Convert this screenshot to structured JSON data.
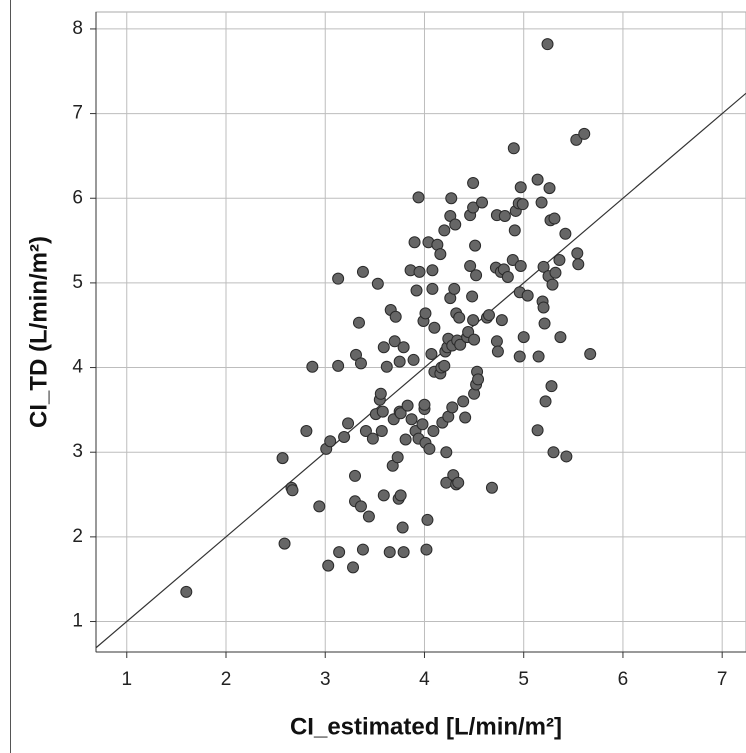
{
  "chart_data": {
    "type": "scatter",
    "x_label": "CI_estimated [L/min/m²]",
    "y_label": "CI_TD (L/min/m²)",
    "xlim": [
      0.69,
      7.24
    ],
    "ylim": [
      0.64,
      8.2
    ],
    "xticks": [
      1,
      2,
      3,
      4,
      5,
      6,
      7
    ],
    "yticks": [
      1,
      2,
      3,
      4,
      5,
      6,
      7,
      8
    ],
    "grid": true,
    "color": "#666666",
    "x": [
      1.6,
      2.57,
      2.59,
      2.66,
      2.67,
      2.81,
      2.87,
      2.94,
      3.01,
      3.05,
      3.03,
      3.13,
      3.13,
      3.14,
      3.19,
      3.23,
      3.28,
      3.3,
      3.3,
      3.31,
      3.34,
      3.36,
      3.36,
      3.38,
      3.38,
      3.41,
      3.44,
      3.48,
      3.51,
      3.53,
      3.55,
      3.56,
      3.57,
      3.58,
      3.59,
      3.59,
      3.62,
      3.65,
      3.66,
      3.68,
      3.69,
      3.7,
      3.71,
      3.73,
      3.74,
      3.75,
      3.75,
      3.76,
      3.76,
      3.78,
      3.79,
      3.79,
      3.81,
      3.83,
      3.86,
      3.87,
      3.89,
      3.9,
      3.91,
      3.92,
      3.94,
      3.94,
      3.95,
      3.98,
      3.99,
      4.0,
      4.0,
      4.01,
      4.01,
      4.02,
      4.03,
      4.04,
      4.05,
      4.07,
      4.08,
      4.08,
      4.09,
      4.1,
      4.1,
      4.13,
      4.16,
      4.16,
      4.17,
      4.18,
      4.2,
      4.2,
      4.21,
      4.22,
      4.22,
      4.23,
      4.24,
      4.24,
      4.26,
      4.26,
      4.27,
      4.28,
      4.28,
      4.29,
      4.3,
      4.31,
      4.32,
      4.32,
      4.33,
      4.34,
      4.35,
      4.36,
      4.39,
      4.41,
      4.43,
      4.44,
      4.46,
      4.46,
      4.48,
      4.49,
      4.49,
      4.49,
      4.5,
      4.5,
      4.51,
      4.52,
      4.52,
      4.53,
      4.54,
      4.58,
      4.63,
      4.65,
      4.68,
      4.72,
      4.73,
      4.73,
      4.74,
      4.77,
      4.78,
      4.8,
      4.81,
      4.84,
      4.89,
      4.9,
      4.91,
      4.92,
      4.95,
      4.96,
      4.96,
      4.97,
      4.97,
      4.99,
      5.0,
      5.04,
      5.14,
      5.14,
      5.15,
      5.18,
      5.19,
      5.2,
      5.2,
      5.21,
      5.22,
      5.24,
      5.25,
      5.26,
      5.27,
      5.28,
      5.29,
      5.3,
      5.31,
      5.32,
      5.36,
      5.37,
      5.42,
      5.43,
      5.53,
      5.54,
      5.55,
      5.61,
      5.67
    ],
    "values": [
      1.35,
      2.93,
      1.92,
      2.58,
      2.55,
      3.25,
      4.01,
      2.36,
      3.04,
      3.13,
      1.66,
      5.05,
      4.02,
      1.82,
      3.18,
      3.34,
      1.64,
      2.72,
      2.42,
      4.15,
      4.53,
      4.05,
      2.36,
      1.85,
      5.13,
      3.25,
      2.24,
      3.16,
      3.45,
      4.99,
      3.62,
      3.69,
      3.25,
      3.48,
      4.24,
      2.49,
      4.01,
      1.82,
      4.68,
      2.84,
      3.39,
      4.31,
      4.6,
      2.94,
      2.45,
      4.07,
      3.48,
      3.46,
      2.49,
      2.11,
      1.82,
      4.24,
      3.15,
      3.55,
      5.15,
      3.39,
      4.09,
      5.48,
      3.25,
      4.91,
      6.01,
      3.16,
      5.13,
      3.33,
      4.55,
      3.51,
      3.56,
      4.64,
      3.11,
      1.85,
      2.2,
      5.48,
      3.04,
      4.16,
      4.93,
      5.15,
      3.25,
      3.95,
      4.47,
      5.45,
      5.34,
      3.93,
      4.0,
      3.35,
      5.62,
      4.02,
      4.19,
      3.0,
      2.64,
      4.24,
      3.42,
      4.34,
      4.82,
      5.79,
      6.0,
      4.26,
      3.53,
      2.73,
      4.93,
      5.69,
      2.62,
      4.64,
      4.32,
      2.64,
      4.59,
      4.27,
      3.6,
      3.41,
      4.36,
      4.42,
      5.2,
      5.8,
      4.84,
      6.18,
      5.89,
      4.56,
      3.69,
      4.33,
      5.44,
      5.09,
      3.8,
      3.95,
      3.86,
      5.95,
      4.59,
      4.62,
      2.58,
      5.18,
      4.31,
      5.8,
      4.19,
      5.13,
      4.56,
      5.16,
      5.79,
      5.07,
      5.27,
      6.59,
      5.62,
      5.85,
      5.94,
      4.89,
      4.13,
      6.13,
      5.2,
      5.93,
      4.36,
      4.85,
      3.26,
      6.22,
      4.13,
      5.95,
      4.78,
      5.19,
      4.71,
      4.52,
      3.6,
      7.82,
      5.08,
      6.12,
      5.74,
      3.78,
      4.98,
      3.0,
      5.76,
      5.12,
      5.27,
      4.36,
      5.58,
      2.95,
      6.69,
      5.35,
      5.22,
      6.76,
      4.16
    ]
  }
}
